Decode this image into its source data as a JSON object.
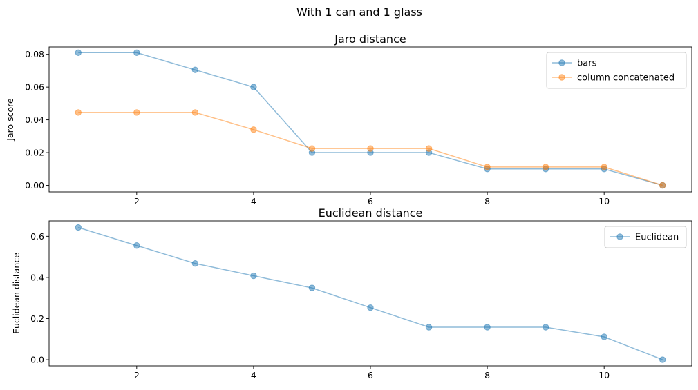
{
  "suptitle": "With 1 can and 1 glass",
  "chart_data": [
    {
      "type": "line",
      "title": "Jaro distance",
      "xlabel": "",
      "ylabel": "Jaro score",
      "x": [
        1,
        2,
        3,
        4,
        5,
        6,
        7,
        8,
        9,
        10,
        11
      ],
      "xlim": [
        0.5,
        11.5
      ],
      "ylim": [
        -0.004,
        0.0845
      ],
      "xticks": [
        2,
        4,
        6,
        8,
        10
      ],
      "yticks": [
        0.0,
        0.02,
        0.04,
        0.06,
        0.08
      ],
      "ytick_labels": [
        "0.00",
        "0.02",
        "0.04",
        "0.06",
        "0.08"
      ],
      "grid": false,
      "legend_position": "top-right",
      "series": [
        {
          "name": "bars",
          "color": "#1f77b4",
          "marker": "circle",
          "values": [
            0.081,
            0.081,
            0.0705,
            0.06,
            0.02,
            0.02,
            0.02,
            0.01,
            0.01,
            0.01,
            0.0
          ]
        },
        {
          "name": "column concatenated",
          "color": "#ff7f0e",
          "marker": "circle",
          "values": [
            0.0445,
            0.0445,
            0.0445,
            0.034,
            0.0225,
            0.0225,
            0.0225,
            0.0112,
            0.0112,
            0.0112,
            0.0
          ]
        }
      ]
    },
    {
      "type": "line",
      "title": "Euclidean distance",
      "xlabel": "",
      "ylabel": "Euclidean distance",
      "x": [
        1,
        2,
        3,
        4,
        5,
        6,
        7,
        8,
        9,
        10,
        11
      ],
      "xlim": [
        0.5,
        11.5
      ],
      "ylim": [
        -0.03,
        0.675
      ],
      "xticks": [
        2,
        4,
        6,
        8,
        10
      ],
      "yticks": [
        0.0,
        0.2,
        0.4,
        0.6
      ],
      "ytick_labels": [
        "0.0",
        "0.2",
        "0.4",
        "0.6"
      ],
      "grid": false,
      "legend_position": "top-right",
      "series": [
        {
          "name": "Euclidean",
          "color": "#1f77b4",
          "marker": "circle",
          "values": [
            0.643,
            0.555,
            0.468,
            0.408,
            0.349,
            0.253,
            0.158,
            0.158,
            0.158,
            0.111,
            0.0
          ]
        }
      ]
    }
  ]
}
